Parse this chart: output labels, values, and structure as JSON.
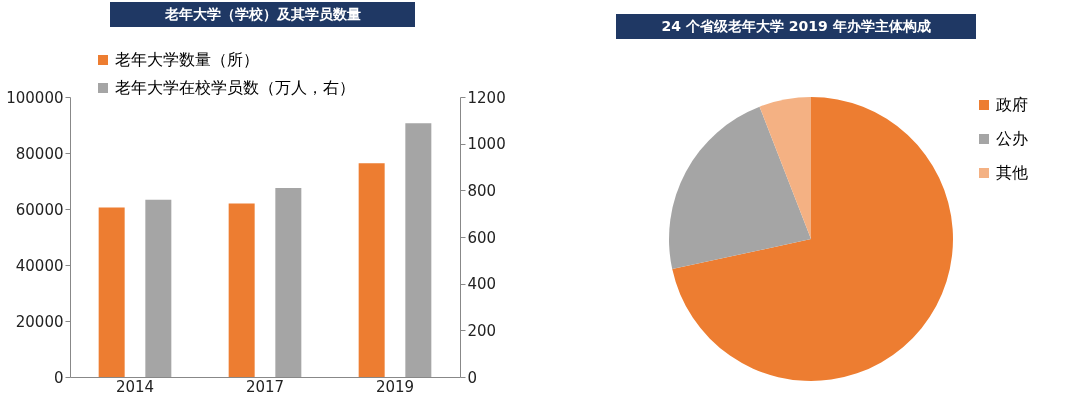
{
  "chart_data": [
    {
      "type": "bar",
      "title": "老年大学（学校）及其学员数量",
      "categories": [
        "2014",
        "2017",
        "2019"
      ],
      "series": [
        {
          "name": "老年大学数量（所）",
          "color": "#ed7d31",
          "values": [
            60500,
            62000,
            76300
          ]
        },
        {
          "name": "老年大学在校学员数（万人，右）",
          "color": "#a5a5a5",
          "values": [
            760,
            810,
            1088
          ],
          "axis": "y2"
        }
      ],
      "ylim": [
        0,
        100000
      ],
      "yticks": [
        0,
        20000,
        40000,
        60000,
        80000,
        100000
      ],
      "y2lim": [
        0,
        1200
      ],
      "y2ticks": [
        0,
        200,
        400,
        600,
        800,
        1000,
        1200
      ],
      "legend": "top left",
      "grid": false
    },
    {
      "type": "pie",
      "title": "24 个省级老年大学 2019 年办学主体构成",
      "categories": [
        "政府",
        "公办",
        "其他"
      ],
      "values": [
        71.6,
        22.5,
        5.9
      ],
      "colors": [
        "#ed7d31",
        "#a5a5a5",
        "#f4b183"
      ],
      "legend": "right"
    }
  ]
}
